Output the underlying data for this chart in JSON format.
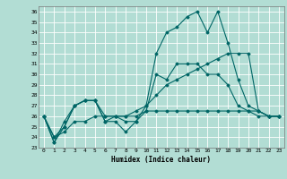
{
  "xlabel": "Humidex (Indice chaleur)",
  "ylabel": "",
  "background_color": "#b2ddd4",
  "grid_color": "#ffffff",
  "line_color": "#006666",
  "xlim": [
    -0.5,
    23.5
  ],
  "ylim": [
    23,
    36.5
  ],
  "xticks": [
    0,
    1,
    2,
    3,
    4,
    5,
    6,
    7,
    8,
    9,
    10,
    11,
    12,
    13,
    14,
    15,
    16,
    17,
    18,
    19,
    20,
    21,
    22,
    23
  ],
  "yticks": [
    23,
    24,
    25,
    26,
    27,
    28,
    29,
    30,
    31,
    32,
    33,
    34,
    35,
    36
  ],
  "series": [
    [
      26,
      23.5,
      25,
      27,
      27.5,
      27.5,
      25.5,
      25.5,
      24.5,
      25.5,
      27,
      32,
      34,
      34.5,
      35.5,
      36,
      34,
      36,
      33,
      29.5,
      27,
      26.5,
      26,
      26
    ],
    [
      26,
      23.5,
      25.5,
      27,
      27.5,
      27.5,
      25.5,
      26,
      25.5,
      25.5,
      26.5,
      30,
      29.5,
      31,
      31,
      31,
      30,
      30,
      29,
      27,
      26.5,
      26,
      26,
      26
    ],
    [
      26,
      24,
      25,
      27,
      27.5,
      27.5,
      26,
      26,
      26,
      26,
      26.5,
      26.5,
      26.5,
      26.5,
      26.5,
      26.5,
      26.5,
      26.5,
      26.5,
      26.5,
      26.5,
      26.5,
      26,
      26
    ],
    [
      26,
      24,
      24.5,
      25.5,
      25.5,
      26,
      26,
      26,
      26,
      26.5,
      27,
      28,
      29,
      29.5,
      30,
      30.5,
      31,
      31.5,
      32,
      32,
      32,
      26.5,
      26,
      26
    ]
  ]
}
